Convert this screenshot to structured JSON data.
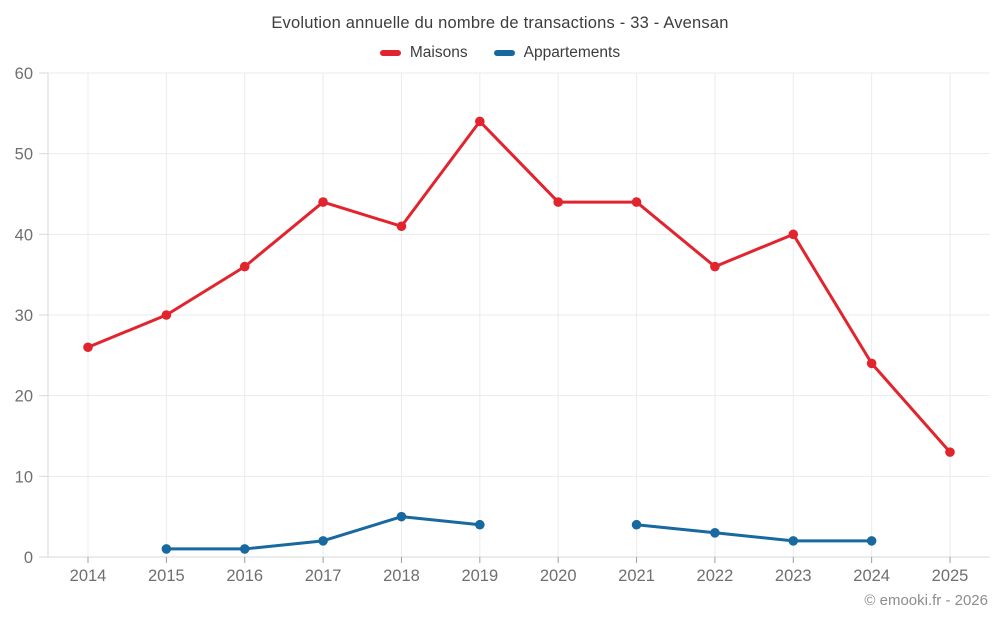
{
  "page": {
    "footer": "© emooki.fr - 2026"
  },
  "chart_data": {
    "type": "line",
    "title": "Evolution annuelle du nombre de transactions - 33 - Avensan",
    "categories": [
      "2014",
      "2015",
      "2016",
      "2017",
      "2018",
      "2019",
      "2020",
      "2021",
      "2022",
      "2023",
      "2024",
      "2025"
    ],
    "series": [
      {
        "name": "Maisons",
        "color": "#e1242d",
        "values": [
          26,
          30,
          36,
          44,
          41,
          54,
          44,
          44,
          36,
          40,
          24,
          13
        ]
      },
      {
        "name": "Appartements",
        "color": "#17699f",
        "values": [
          null,
          1,
          1,
          2,
          5,
          4,
          null,
          4,
          3,
          2,
          2,
          null
        ]
      }
    ],
    "xlabel": "",
    "ylabel": "",
    "ylim": [
      0,
      60
    ],
    "y_ticks": [
      0,
      10,
      20,
      30,
      40,
      50,
      60
    ],
    "grid": true,
    "legend_position": "top",
    "colors": {
      "grid": "#ebebeb",
      "axis": "#d9d9d9",
      "tick": "#9e9e9e",
      "tick_label": "#6f6f6f",
      "title_text": "#3d3d3d"
    }
  }
}
